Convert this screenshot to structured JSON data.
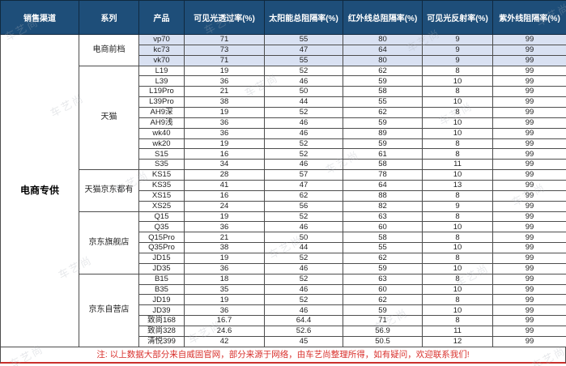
{
  "table": {
    "headers": [
      "销售渠道",
      "系列",
      "产品",
      "可见光透过率(%)",
      "太阳能总阻隔率(%)",
      "红外线总阻隔率(%)",
      "可见光反射率(%)",
      "紫外线阻隔率(%)"
    ],
    "channel": "电商专供",
    "groups": [
      {
        "series": "电商前档",
        "highlight": true,
        "rows": [
          [
            "vp70",
            "71",
            "55",
            "80",
            "9",
            "99"
          ],
          [
            "kc73",
            "73",
            "47",
            "64",
            "9",
            "99"
          ],
          [
            "vk70",
            "71",
            "55",
            "80",
            "9",
            "99"
          ]
        ]
      },
      {
        "series": "天猫",
        "highlight": false,
        "rows": [
          [
            "L19",
            "19",
            "52",
            "62",
            "8",
            "99"
          ],
          [
            "L39",
            "36",
            "46",
            "59",
            "10",
            "99"
          ],
          [
            "L19Pro",
            "21",
            "50",
            "58",
            "8",
            "99"
          ],
          [
            "L39Pro",
            "38",
            "44",
            "55",
            "10",
            "99"
          ],
          [
            "AH9深",
            "19",
            "52",
            "62",
            "8",
            "99"
          ],
          [
            "AH9浅",
            "36",
            "46",
            "59",
            "10",
            "99"
          ],
          [
            "wk40",
            "36",
            "46",
            "89",
            "10",
            "99"
          ],
          [
            "wk20",
            "19",
            "52",
            "59",
            "8",
            "99"
          ],
          [
            "S15",
            "16",
            "52",
            "61",
            "8",
            "99"
          ],
          [
            "S35",
            "34",
            "46",
            "58",
            "11",
            "99"
          ]
        ]
      },
      {
        "series": "天猫京东都有",
        "highlight": false,
        "rows": [
          [
            "KS15",
            "28",
            "57",
            "78",
            "10",
            "99"
          ],
          [
            "KS35",
            "41",
            "47",
            "64",
            "13",
            "99"
          ],
          [
            "XS15",
            "16",
            "62",
            "88",
            "8",
            "99"
          ],
          [
            "XS25",
            "24",
            "56",
            "82",
            "9",
            "99"
          ]
        ]
      },
      {
        "series": "京东旗舰店",
        "highlight": false,
        "rows": [
          [
            "Q15",
            "19",
            "52",
            "63",
            "8",
            "99"
          ],
          [
            "Q35",
            "36",
            "46",
            "60",
            "10",
            "99"
          ],
          [
            "Q15Pro",
            "21",
            "50",
            "58",
            "8",
            "99"
          ],
          [
            "Q35Pro",
            "38",
            "44",
            "55",
            "10",
            "99"
          ],
          [
            "JD15",
            "19",
            "52",
            "62",
            "8",
            "99"
          ],
          [
            "JD35",
            "36",
            "46",
            "59",
            "10",
            "99"
          ]
        ]
      },
      {
        "series": "京东自营店",
        "highlight": false,
        "rows": [
          [
            "B15",
            "18",
            "52",
            "63",
            "8",
            "99"
          ],
          [
            "B35",
            "35",
            "46",
            "60",
            "10",
            "99"
          ],
          [
            "JD19",
            "19",
            "52",
            "62",
            "8",
            "99"
          ],
          [
            "JD39",
            "36",
            "46",
            "59",
            "10",
            "99"
          ],
          [
            "致尚168",
            "16.7",
            "64.4",
            "71",
            "8",
            "99"
          ],
          [
            "致尚328",
            "24.6",
            "52.6",
            "56.9",
            "11",
            "99"
          ],
          [
            "清悦399",
            "42",
            "45",
            "50.5",
            "12",
            "99"
          ]
        ]
      }
    ],
    "note": "注: 以上数据大部分来自威固官网，部分来源于网络，由车艺尚整理所得，如有疑问，欢迎联系我们!"
  },
  "watermark_text": "车艺尚",
  "colors": {
    "header_bg": "#1E4E79",
    "header_text": "#FFFFFF",
    "highlight_row_bg": "#D9E1F2",
    "note_text": "#D9302C",
    "grid_line": "#4D4D4D"
  }
}
